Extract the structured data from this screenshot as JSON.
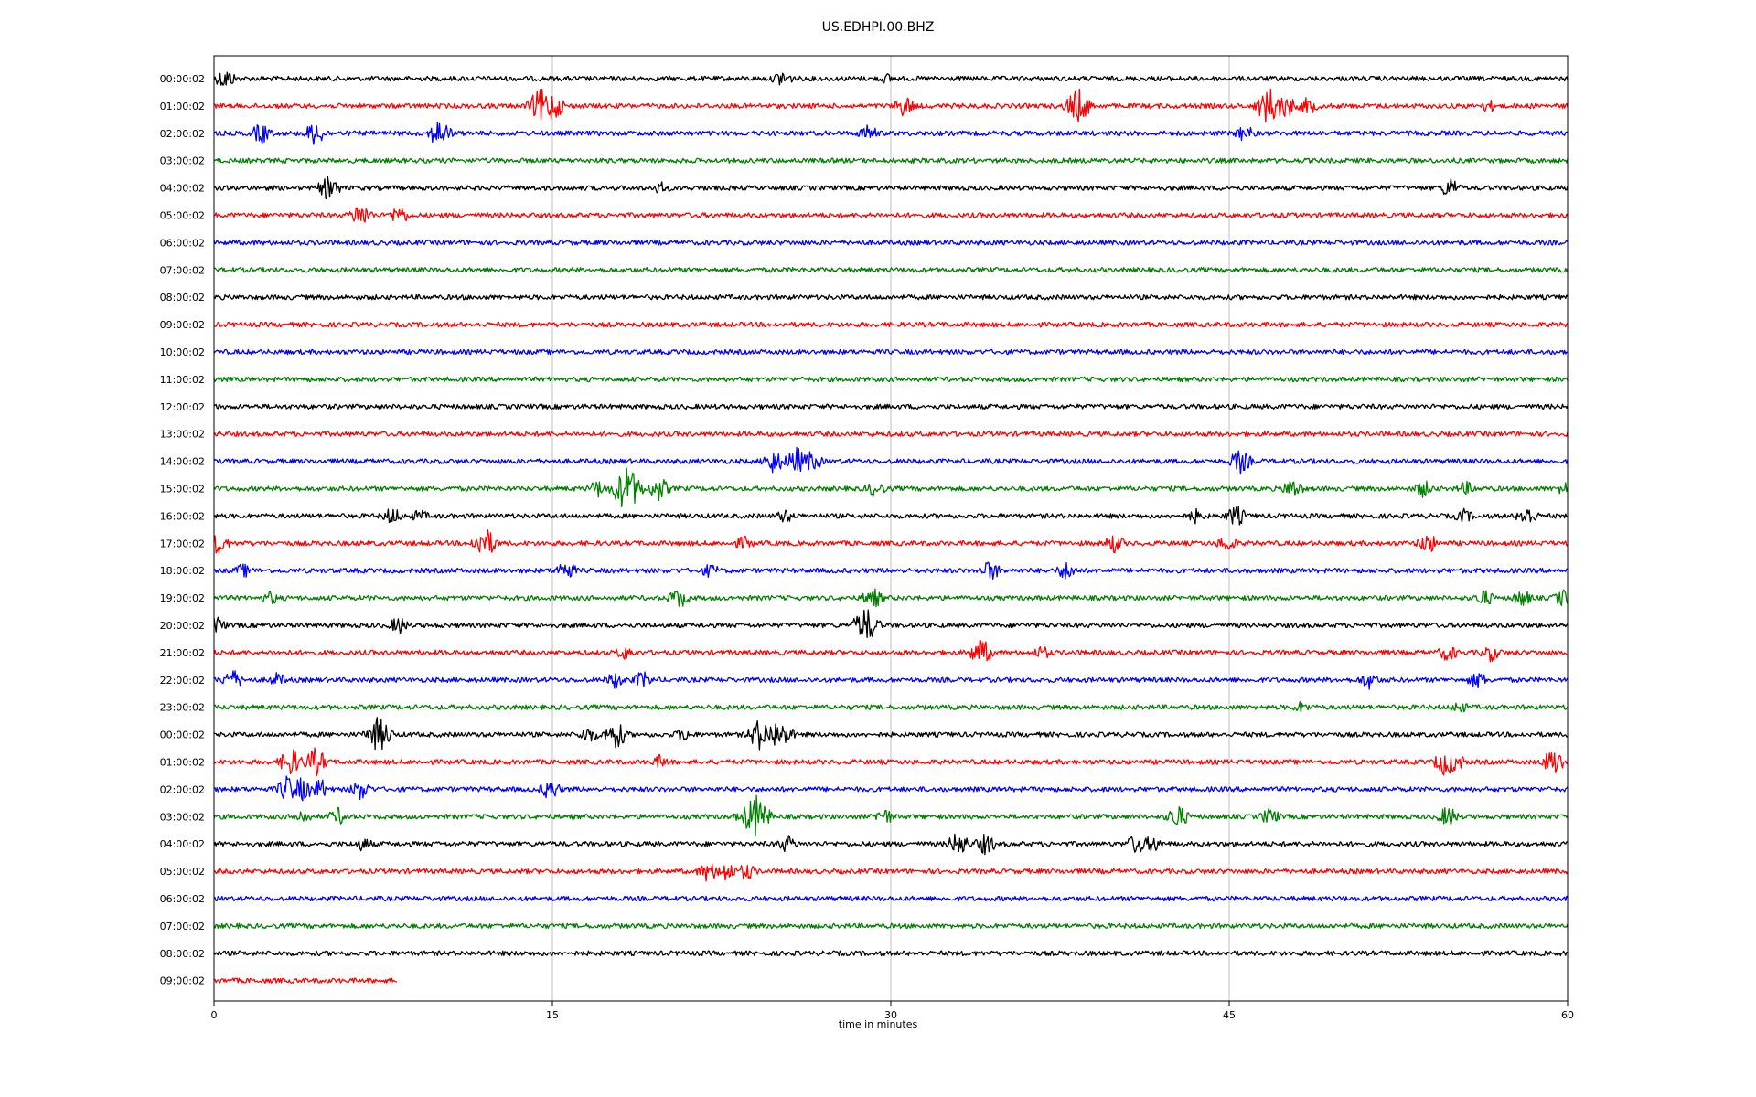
{
  "chart_data": {
    "type": "line",
    "title": "US.EDHPI.00.BHZ",
    "xlabel": "time in minutes",
    "xlim": [
      0,
      60
    ],
    "xticks": [
      "0",
      "15",
      "30",
      "45",
      "60"
    ],
    "grid": "vertical",
    "colors": [
      "#000000",
      "#ff0000",
      "#0000ff",
      "#008000"
    ],
    "rows": [
      {
        "label": "00:00:02",
        "color": "#000000",
        "end": 60,
        "events": [
          [
            0.5,
            10
          ],
          [
            25.2,
            8
          ],
          [
            29.8,
            4
          ]
        ]
      },
      {
        "label": "01:00:02",
        "color": "#ff0000",
        "end": 60,
        "events": [
          [
            14.5,
            18
          ],
          [
            15.0,
            15
          ],
          [
            30.6,
            10
          ],
          [
            38.3,
            18
          ],
          [
            46.8,
            20
          ],
          [
            47.5,
            12
          ],
          [
            48.5,
            8
          ],
          [
            56.5,
            5
          ]
        ]
      },
      {
        "label": "02:00:02",
        "color": "#0000ff",
        "end": 60,
        "events": [
          [
            2.1,
            10
          ],
          [
            4.5,
            12
          ],
          [
            10.0,
            14
          ],
          [
            29.0,
            8
          ],
          [
            45.7,
            8
          ]
        ]
      },
      {
        "label": "03:00:02",
        "color": "#008000",
        "end": 60,
        "events": []
      },
      {
        "label": "04:00:02",
        "color": "#000000",
        "end": 60,
        "events": [
          [
            5.1,
            12
          ],
          [
            19.8,
            5
          ],
          [
            54.8,
            10
          ]
        ]
      },
      {
        "label": "05:00:02",
        "color": "#ff0000",
        "end": 60,
        "events": [
          [
            6.5,
            12
          ],
          [
            8.2,
            9
          ]
        ]
      },
      {
        "label": "06:00:02",
        "color": "#0000ff",
        "end": 60,
        "events": []
      },
      {
        "label": "07:00:02",
        "color": "#008000",
        "end": 60,
        "events": []
      },
      {
        "label": "08:00:02",
        "color": "#000000",
        "end": 60,
        "events": []
      },
      {
        "label": "09:00:02",
        "color": "#ff0000",
        "end": 60,
        "events": []
      },
      {
        "label": "10:00:02",
        "color": "#0000ff",
        "end": 60,
        "events": []
      },
      {
        "label": "11:00:02",
        "color": "#008000",
        "end": 60,
        "events": []
      },
      {
        "label": "12:00:02",
        "color": "#000000",
        "end": 60,
        "events": []
      },
      {
        "label": "13:00:02",
        "color": "#ff0000",
        "end": 60,
        "events": []
      },
      {
        "label": "14:00:02",
        "color": "#0000ff",
        "end": 60,
        "events": [
          [
            24.8,
            12
          ],
          [
            25.8,
            14
          ],
          [
            26.5,
            10
          ],
          [
            45.5,
            12
          ]
        ]
      },
      {
        "label": "15:00:02",
        "color": "#008000",
        "end": 60,
        "events": [
          [
            17.0,
            8
          ],
          [
            18.3,
            24
          ],
          [
            19.7,
            12
          ],
          [
            29.3,
            8
          ],
          [
            47.8,
            10
          ],
          [
            53.6,
            8
          ],
          [
            55.5,
            6
          ],
          [
            59.9,
            6
          ]
        ]
      },
      {
        "label": "16:00:02",
        "color": "#000000",
        "end": 60,
        "events": [
          [
            7.9,
            8
          ],
          [
            9.1,
            5
          ],
          [
            25.3,
            6
          ],
          [
            43.5,
            6
          ],
          [
            45.3,
            10
          ],
          [
            55.4,
            6
          ],
          [
            58.2,
            10
          ]
        ]
      },
      {
        "label": "17:00:02",
        "color": "#ff0000",
        "end": 60,
        "events": [
          [
            0.2,
            10
          ],
          [
            12.0,
            16
          ],
          [
            23.5,
            6
          ],
          [
            39.9,
            9
          ],
          [
            44.9,
            8
          ],
          [
            53.8,
            10
          ]
        ]
      },
      {
        "label": "18:00:02",
        "color": "#0000ff",
        "end": 60,
        "events": [
          [
            1.3,
            6
          ],
          [
            15.6,
            10
          ],
          [
            22.0,
            6
          ],
          [
            34.4,
            10
          ],
          [
            37.8,
            9
          ]
        ]
      },
      {
        "label": "19:00:02",
        "color": "#008000",
        "end": 60,
        "events": [
          [
            2.5,
            6
          ],
          [
            20.6,
            10
          ],
          [
            29.2,
            10
          ],
          [
            56.3,
            8
          ],
          [
            58.0,
            8
          ],
          [
            59.8,
            8
          ]
        ]
      },
      {
        "label": "20:00:02",
        "color": "#000000",
        "end": 60,
        "events": [
          [
            0.1,
            8
          ],
          [
            8.2,
            8
          ],
          [
            28.9,
            18
          ]
        ]
      },
      {
        "label": "21:00:02",
        "color": "#ff0000",
        "end": 60,
        "events": [
          [
            18.2,
            6
          ],
          [
            34.0,
            14
          ],
          [
            36.7,
            6
          ],
          [
            54.7,
            8
          ],
          [
            56.6,
            8
          ]
        ]
      },
      {
        "label": "22:00:02",
        "color": "#0000ff",
        "end": 60,
        "events": [
          [
            0.8,
            10
          ],
          [
            2.8,
            6
          ],
          [
            17.8,
            8
          ],
          [
            19.0,
            8
          ],
          [
            51.2,
            8
          ],
          [
            56.0,
            8
          ]
        ]
      },
      {
        "label": "23:00:02",
        "color": "#008000",
        "end": 60,
        "events": [
          [
            48.2,
            5
          ],
          [
            55.2,
            5
          ]
        ]
      },
      {
        "label": "00:00:02",
        "color": "#000000",
        "end": 60,
        "events": [
          [
            7.3,
            18
          ],
          [
            16.6,
            8
          ],
          [
            17.8,
            14
          ],
          [
            20.8,
            6
          ],
          [
            24.2,
            16
          ],
          [
            24.9,
            14
          ],
          [
            25.3,
            10
          ]
        ]
      },
      {
        "label": "01:00:02",
        "color": "#ff0000",
        "end": 60,
        "events": [
          [
            3.4,
            14
          ],
          [
            4.5,
            14
          ],
          [
            19.8,
            6
          ],
          [
            54.6,
            14
          ],
          [
            55.0,
            10
          ],
          [
            59.4,
            14
          ]
        ]
      },
      {
        "label": "02:00:02",
        "color": "#0000ff",
        "end": 60,
        "events": [
          [
            3.3,
            14
          ],
          [
            3.9,
            12
          ],
          [
            4.7,
            10
          ],
          [
            6.5,
            10
          ],
          [
            14.9,
            10
          ]
        ]
      },
      {
        "label": "03:00:02",
        "color": "#008000",
        "end": 60,
        "events": [
          [
            3.9,
            6
          ],
          [
            5.5,
            8
          ],
          [
            23.5,
            6
          ],
          [
            24.0,
            22
          ],
          [
            29.7,
            8
          ],
          [
            42.7,
            12
          ],
          [
            46.8,
            8
          ],
          [
            54.7,
            10
          ]
        ]
      },
      {
        "label": "04:00:02",
        "color": "#000000",
        "end": 60,
        "events": [
          [
            6.6,
            6
          ],
          [
            25.4,
            8
          ],
          [
            33.0,
            12
          ],
          [
            34.2,
            10
          ],
          [
            40.9,
            10
          ],
          [
            41.6,
            8
          ]
        ]
      },
      {
        "label": "05:00:02",
        "color": "#ff0000",
        "end": 60,
        "events": [
          [
            21.9,
            10
          ],
          [
            22.7,
            10
          ],
          [
            23.6,
            8
          ]
        ]
      },
      {
        "label": "06:00:02",
        "color": "#0000ff",
        "end": 60,
        "events": []
      },
      {
        "label": "07:00:02",
        "color": "#008000",
        "end": 60,
        "events": []
      },
      {
        "label": "08:00:02",
        "color": "#000000",
        "end": 60,
        "events": []
      },
      {
        "label": "09:00:02",
        "color": "#ff0000",
        "end": 8.1,
        "events": []
      }
    ]
  }
}
